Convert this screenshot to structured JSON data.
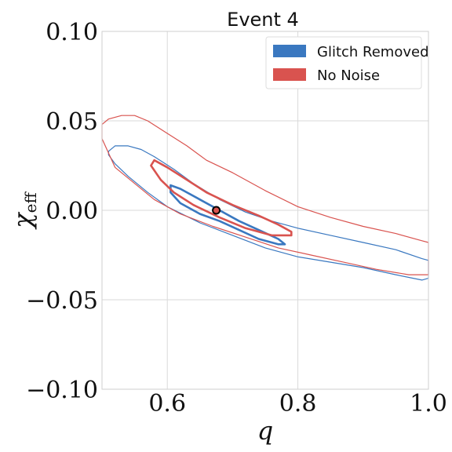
{
  "chart_data": {
    "type": "contour",
    "title": "Event 4",
    "xlabel": "q",
    "ylabel_main": "χ",
    "ylabel_sub": "eff",
    "xlim": [
      0.5,
      1.0
    ],
    "ylim": [
      -0.1,
      0.1
    ],
    "xticks": [
      0.6,
      0.8,
      1.0
    ],
    "xtick_labels": [
      "0.6",
      "0.8",
      "1.0"
    ],
    "yticks": [
      -0.1,
      -0.05,
      0.0,
      0.05,
      0.1
    ],
    "ytick_labels": [
      "−0.10",
      "−0.05",
      "0.00",
      "0.05",
      "0.10"
    ],
    "grid": true,
    "legend_position": "top-right",
    "series": [
      {
        "name": "Glitch Removed",
        "color": "#3a78c0",
        "contours": [
          {
            "level": "inner",
            "points": [
              [
                0.605,
                0.014
              ],
              [
                0.62,
                0.012
              ],
              [
                0.65,
                0.006
              ],
              [
                0.68,
                0.0
              ],
              [
                0.71,
                -0.006
              ],
              [
                0.74,
                -0.011
              ],
              [
                0.77,
                -0.016
              ],
              [
                0.78,
                -0.019
              ],
              [
                0.77,
                -0.019
              ],
              [
                0.74,
                -0.016
              ],
              [
                0.71,
                -0.011
              ],
              [
                0.68,
                -0.006
              ],
              [
                0.65,
                -0.002
              ],
              [
                0.62,
                0.004
              ],
              [
                0.605,
                0.01
              ]
            ]
          },
          {
            "level": "outer",
            "points": [
              [
                0.51,
                0.033
              ],
              [
                0.52,
                0.036
              ],
              [
                0.54,
                0.036
              ],
              [
                0.56,
                0.034
              ],
              [
                0.58,
                0.03
              ],
              [
                0.61,
                0.023
              ],
              [
                0.64,
                0.015
              ],
              [
                0.68,
                0.006
              ],
              [
                0.72,
                -0.001
              ],
              [
                0.76,
                -0.006
              ],
              [
                0.8,
                -0.01
              ],
              [
                0.85,
                -0.014
              ],
              [
                0.9,
                -0.018
              ],
              [
                0.95,
                -0.022
              ],
              [
                0.99,
                -0.027
              ],
              [
                1.0,
                -0.028
              ],
              [
                1.0,
                -0.038
              ],
              [
                0.99,
                -0.039
              ],
              [
                0.95,
                -0.036
              ],
              [
                0.9,
                -0.032
              ],
              [
                0.85,
                -0.029
              ],
              [
                0.8,
                -0.026
              ],
              [
                0.75,
                -0.021
              ],
              [
                0.7,
                -0.014
              ],
              [
                0.65,
                -0.007
              ],
              [
                0.6,
                0.002
              ],
              [
                0.57,
                0.01
              ],
              [
                0.54,
                0.019
              ],
              [
                0.52,
                0.026
              ],
              [
                0.51,
                0.031
              ]
            ]
          }
        ]
      },
      {
        "name": "No Noise",
        "color": "#d9534f",
        "contours": [
          {
            "level": "inner",
            "points": [
              [
                0.58,
                0.028
              ],
              [
                0.6,
                0.024
              ],
              [
                0.63,
                0.017
              ],
              [
                0.66,
                0.01
              ],
              [
                0.7,
                0.003
              ],
              [
                0.74,
                -0.003
              ],
              [
                0.77,
                -0.008
              ],
              [
                0.79,
                -0.012
              ],
              [
                0.79,
                -0.014
              ],
              [
                0.76,
                -0.014
              ],
              [
                0.72,
                -0.01
              ],
              [
                0.68,
                -0.004
              ],
              [
                0.64,
                0.003
              ],
              [
                0.61,
                0.01
              ],
              [
                0.59,
                0.017
              ],
              [
                0.575,
                0.025
              ]
            ]
          },
          {
            "level": "outer",
            "points": [
              [
                0.5,
                0.048
              ],
              [
                0.51,
                0.051
              ],
              [
                0.53,
                0.053
              ],
              [
                0.55,
                0.053
              ],
              [
                0.57,
                0.05
              ],
              [
                0.6,
                0.043
              ],
              [
                0.63,
                0.036
              ],
              [
                0.66,
                0.028
              ],
              [
                0.7,
                0.021
              ],
              [
                0.75,
                0.011
              ],
              [
                0.8,
                0.002
              ],
              [
                0.85,
                -0.004
              ],
              [
                0.9,
                -0.009
              ],
              [
                0.95,
                -0.013
              ],
              [
                0.99,
                -0.017
              ],
              [
                1.0,
                -0.018
              ],
              [
                1.0,
                -0.036
              ],
              [
                0.97,
                -0.036
              ],
              [
                0.92,
                -0.033
              ],
              [
                0.87,
                -0.029
              ],
              [
                0.82,
                -0.025
              ],
              [
                0.77,
                -0.021
              ],
              [
                0.72,
                -0.015
              ],
              [
                0.67,
                -0.009
              ],
              [
                0.62,
                -0.002
              ],
              [
                0.58,
                0.006
              ],
              [
                0.55,
                0.015
              ],
              [
                0.52,
                0.024
              ],
              [
                0.5,
                0.04
              ]
            ]
          }
        ]
      }
    ],
    "marker": {
      "x": 0.675,
      "y": 0.0,
      "fill": "#d9534f",
      "edge": "#000000"
    }
  }
}
